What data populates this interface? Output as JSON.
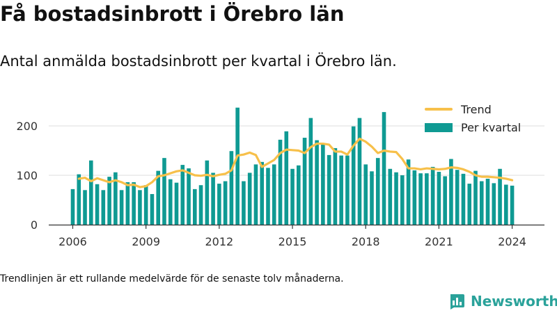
{
  "title": "Få bostadsinbrott i Örebro län",
  "subtitle": "Antal anmälda bostadsinbrott per kvartal i Örebro län.",
  "footnote": "Trendlinjen är ett rullande medelvärde för de senaste tolv månaderna.",
  "brand": {
    "name": "Newsworthy",
    "color": "#2aa29a",
    "icon": "bar-chart-logo-icon"
  },
  "colors": {
    "bar": "#0f9a93",
    "trend": "#f7c04a",
    "grid": "#dddddd",
    "axis": "#333333"
  },
  "chart_data": {
    "type": "bar",
    "title": "",
    "xlabel": "",
    "ylabel": "",
    "ylim": [
      0,
      240
    ],
    "yticks": [
      0,
      100,
      200
    ],
    "xticks": [
      "2006",
      "2009",
      "2012",
      "2015",
      "2018",
      "2021",
      "2024"
    ],
    "grid": "horizontal",
    "legend_position": "top-right",
    "legend": [
      "Trend",
      "Per kvartal"
    ],
    "categories": [
      "2006 Q1",
      "2006 Q2",
      "2006 Q3",
      "2006 Q4",
      "2007 Q1",
      "2007 Q2",
      "2007 Q3",
      "2007 Q4",
      "2008 Q1",
      "2008 Q2",
      "2008 Q3",
      "2008 Q4",
      "2009 Q1",
      "2009 Q2",
      "2009 Q3",
      "2009 Q4",
      "2010 Q1",
      "2010 Q2",
      "2010 Q3",
      "2010 Q4",
      "2011 Q1",
      "2011 Q2",
      "2011 Q3",
      "2011 Q4",
      "2012 Q1",
      "2012 Q2",
      "2012 Q3",
      "2012 Q4",
      "2013 Q1",
      "2013 Q2",
      "2013 Q3",
      "2013 Q4",
      "2014 Q1",
      "2014 Q2",
      "2014 Q3",
      "2014 Q4",
      "2015 Q1",
      "2015 Q2",
      "2015 Q3",
      "2015 Q4",
      "2016 Q1",
      "2016 Q2",
      "2016 Q3",
      "2016 Q4",
      "2017 Q1",
      "2017 Q2",
      "2017 Q3",
      "2017 Q4",
      "2018 Q1",
      "2018 Q2",
      "2018 Q3",
      "2018 Q4",
      "2019 Q1",
      "2019 Q2",
      "2019 Q3",
      "2019 Q4",
      "2020 Q1",
      "2020 Q2",
      "2020 Q3",
      "2020 Q4",
      "2021 Q1",
      "2021 Q2",
      "2021 Q3",
      "2021 Q4",
      "2022 Q1",
      "2022 Q2",
      "2022 Q3",
      "2022 Q4",
      "2023 Q1",
      "2023 Q2",
      "2023 Q3",
      "2023 Q4",
      "2024 Q1"
    ],
    "series": [
      {
        "name": "Per kvartal",
        "type": "bar",
        "values": [
          72,
          102,
          70,
          130,
          82,
          70,
          97,
          106,
          70,
          86,
          86,
          70,
          80,
          62,
          109,
          135,
          92,
          85,
          121,
          114,
          72,
          80,
          130,
          105,
          83,
          88,
          149,
          237,
          88,
          105,
          122,
          127,
          115,
          122,
          172,
          189,
          113,
          120,
          176,
          216,
          171,
          162,
          141,
          155,
          140,
          140,
          199,
          216,
          122,
          108,
          135,
          228,
          113,
          106,
          100,
          132,
          110,
          104,
          104,
          117,
          107,
          98,
          133,
          111,
          103,
          83,
          109,
          88,
          93,
          84,
          113,
          81,
          79
        ],
        "color": "#0f9a93"
      },
      {
        "name": "Trend",
        "type": "line",
        "values": [
          null,
          93,
          95,
          88,
          94,
          90,
          86,
          90,
          86,
          80,
          81,
          76,
          78,
          86,
          98,
          100,
          104,
          108,
          110,
          105,
          100,
          99,
          101,
          98,
          101,
          103,
          110,
          140,
          142,
          146,
          141,
          117,
          124,
          131,
          145,
          152,
          151,
          150,
          145,
          157,
          164,
          164,
          162,
          148,
          148,
          142,
          160,
          174,
          168,
          158,
          145,
          150,
          148,
          147,
          133,
          114,
          114,
          112,
          114,
          113,
          112,
          113,
          116,
          115,
          112,
          107,
          100,
          97,
          97,
          96,
          95,
          93,
          90
        ],
        "color": "#f7c04a"
      }
    ]
  }
}
